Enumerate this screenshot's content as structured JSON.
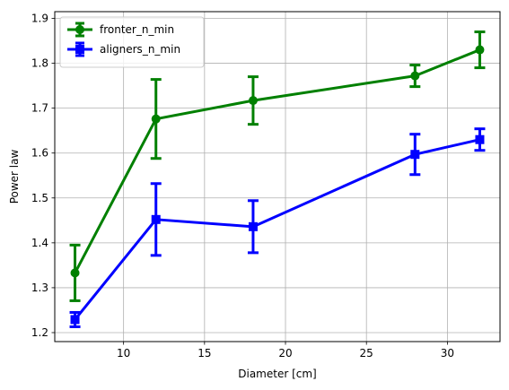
{
  "chart_data": {
    "type": "line",
    "title": "",
    "xlabel": "Diameter [cm]",
    "ylabel": "Power law",
    "xlim": [
      5.75,
      33.25
    ],
    "ylim": [
      1.18,
      1.915
    ],
    "xticks": [
      10,
      15,
      20,
      25,
      30
    ],
    "yticks": [
      1.2,
      1.3,
      1.4,
      1.5,
      1.6,
      1.7,
      1.8,
      1.9
    ],
    "grid": true,
    "legend": "top-left",
    "error_bars": true,
    "series": [
      {
        "name": "fronter_n_min",
        "color": "#008000",
        "marker": "circle",
        "x": [
          7,
          12,
          18,
          28,
          32
        ],
        "y": [
          1.333,
          1.676,
          1.717,
          1.772,
          1.83
        ],
        "yerr": [
          0.062,
          0.088,
          0.053,
          0.024,
          0.04
        ]
      },
      {
        "name": "aligners_n_min",
        "color": "#0000ff",
        "marker": "square",
        "x": [
          7,
          12,
          18,
          28,
          32
        ],
        "y": [
          1.229,
          1.452,
          1.436,
          1.597,
          1.63
        ],
        "yerr": [
          0.016,
          0.08,
          0.058,
          0.045,
          0.024
        ]
      }
    ]
  }
}
